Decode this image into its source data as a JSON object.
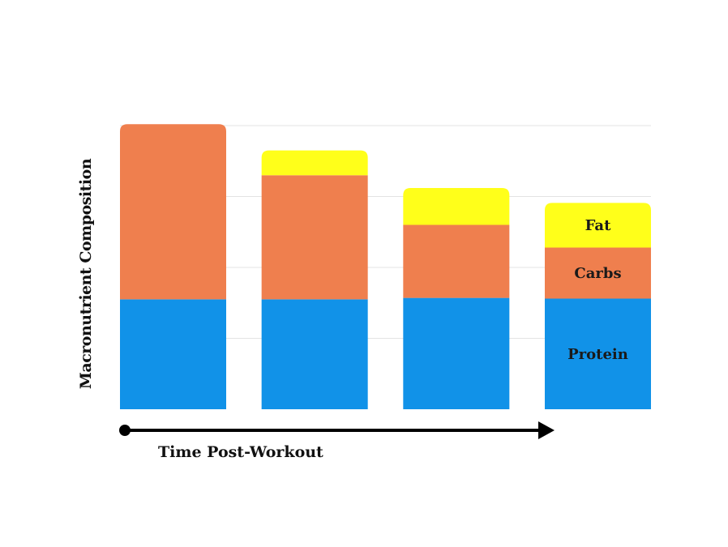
{
  "chart_data": {
    "type": "bar",
    "stacked": true,
    "categories": [
      "",
      "",
      "",
      ""
    ],
    "series": [
      {
        "name": "Protein",
        "values": [
          1.55,
          1.55,
          1.57,
          1.56
        ],
        "color": "#1192e8"
      },
      {
        "name": "Carbs",
        "values": [
          2.47,
          1.75,
          1.03,
          0.72
        ],
        "color": "#ef7f4e"
      },
      {
        "name": "Fat",
        "values": [
          0,
          0.35,
          0.52,
          0.63
        ],
        "color": "#ffff1a"
      }
    ],
    "ylabel": "Macronutrient Composition",
    "xlabel": "Time Post-Workout",
    "ylim": [
      0,
      4
    ],
    "grid": true,
    "segment_labels_on_bar": 3
  }
}
